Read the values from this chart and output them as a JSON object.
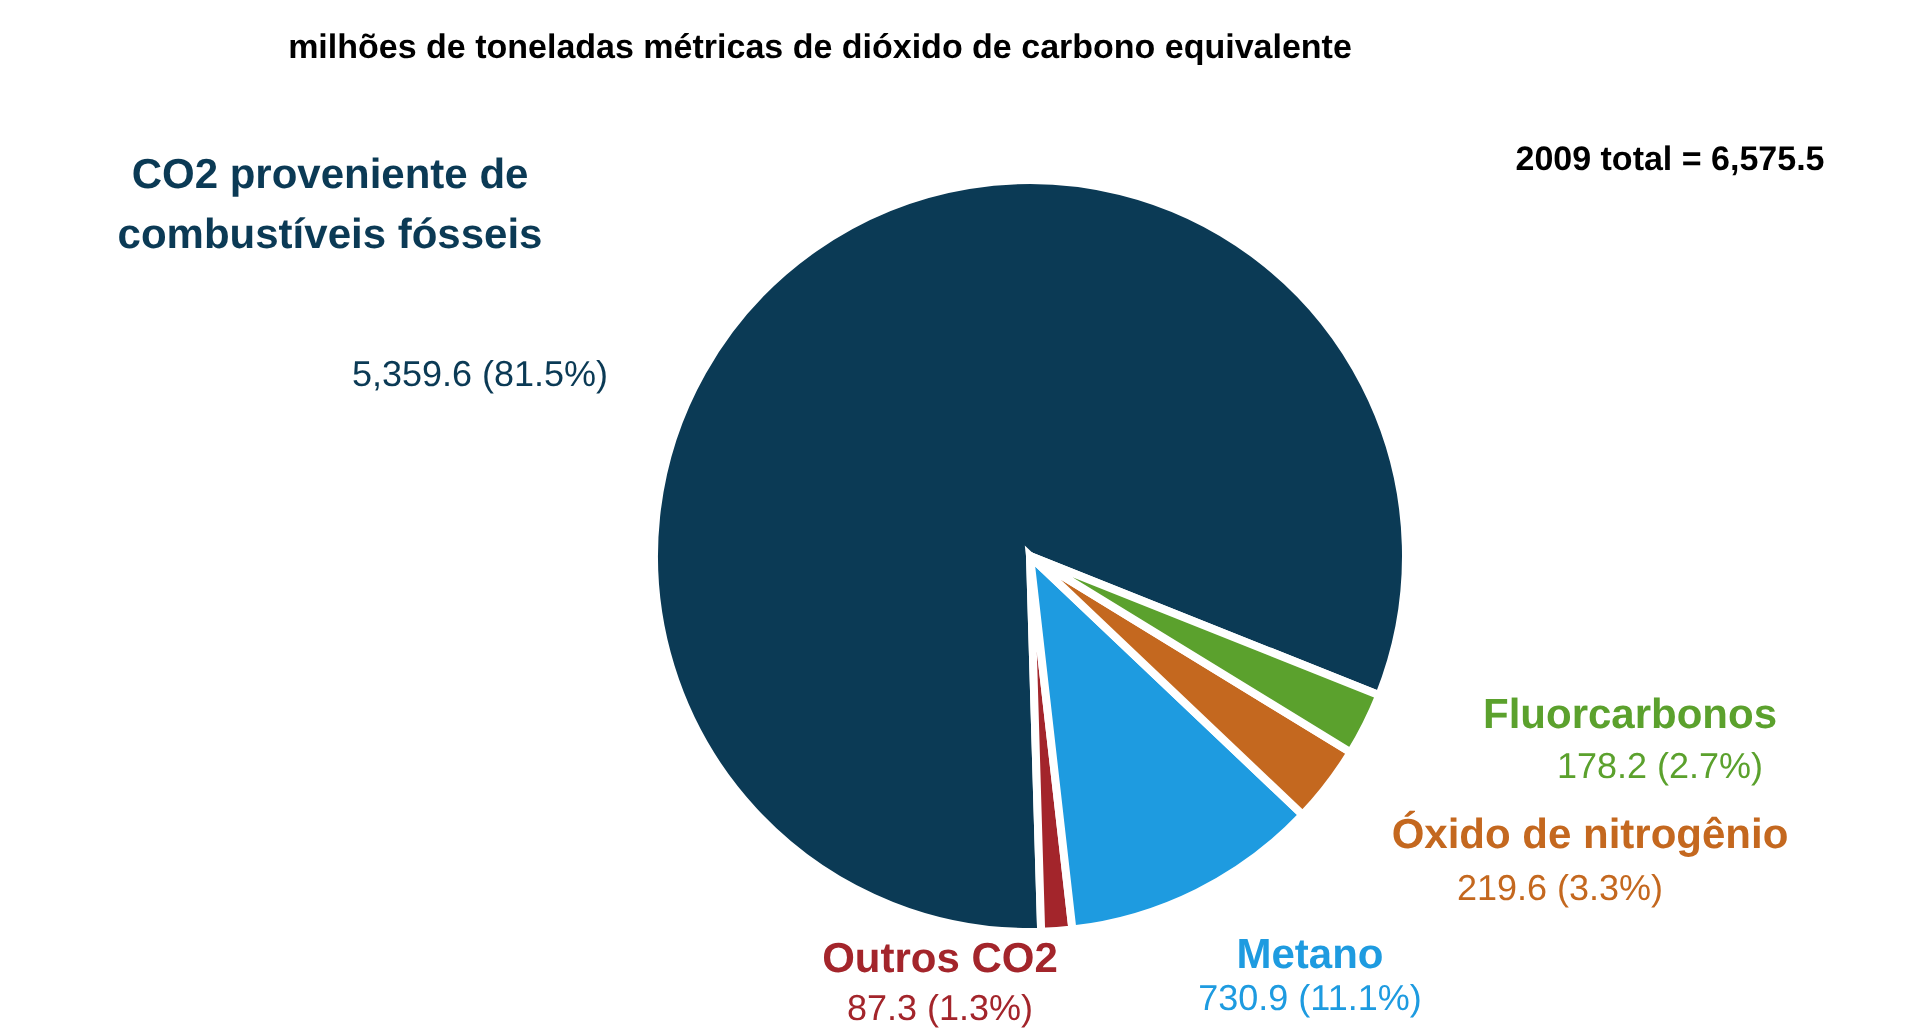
{
  "chart_data": {
    "type": "pie",
    "title": "milhões de toneladas métricas de dióxido de carbono equivalente",
    "categories": [
      "CO2 proveniente de combustíveis fósseis",
      "Outros CO2",
      "Metano",
      "Óxido de nitrogênio",
      "Fluorcarbonos"
    ],
    "values": [
      5359.6,
      87.3,
      730.9,
      219.6,
      178.2
    ],
    "colors": [
      "#0b3a55",
      "#a3252b",
      "#1e9be0",
      "#c4681f",
      "#5ba12d"
    ],
    "value_labels": [
      "5,359.6 (81.5%)",
      "87.3 (1.3%)",
      "730.9 (11.1%)",
      "219.6 (3.3%)",
      "178.2 (2.7%)"
    ],
    "annotations": [
      "2009 total = 6,575.5"
    ]
  }
}
